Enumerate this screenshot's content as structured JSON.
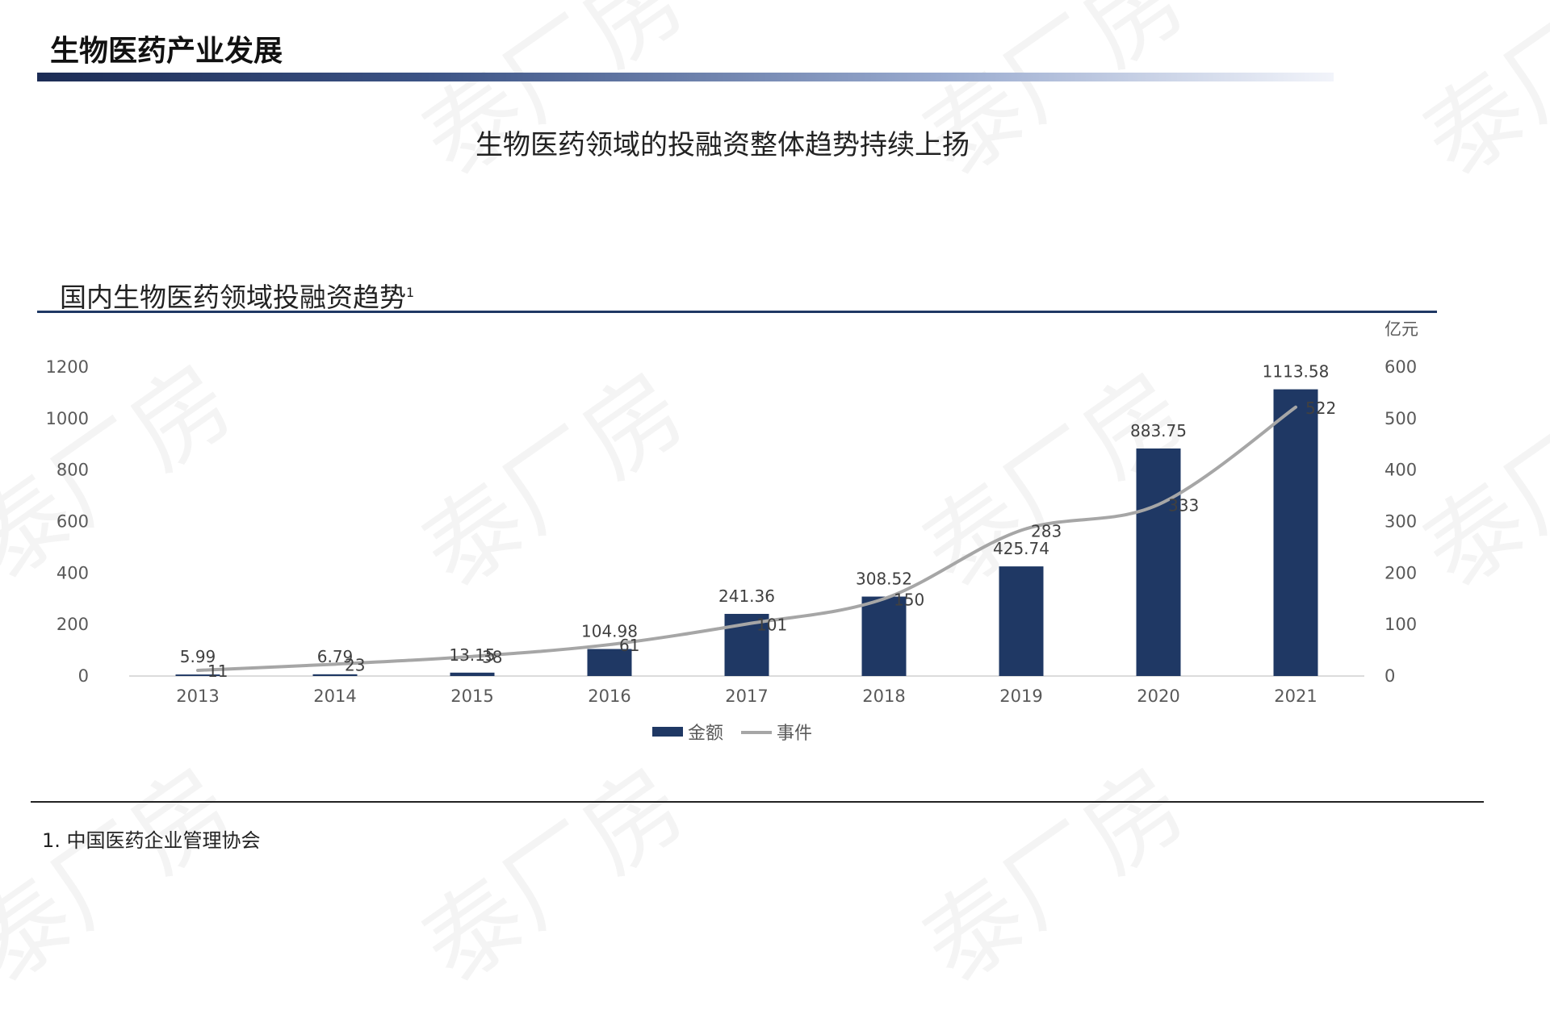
{
  "page": {
    "section_title": "生物医药产业发展",
    "headline": "生物医药领域的投融资整体趋势持续上扬",
    "chart_title": "国内生物医药领域投融资趋势",
    "chart_title_superscript": "1",
    "footnote": "1. 中国医药企业管理协会",
    "watermark": "泰厂房"
  },
  "colors": {
    "bar": "#1f3864",
    "line": "#a6a6a6",
    "header_bar_start": "#1c2c55"
  },
  "chart_data": {
    "type": "bar",
    "categories": [
      "2013",
      "2014",
      "2015",
      "2016",
      "2017",
      "2018",
      "2019",
      "2020",
      "2021"
    ],
    "series": [
      {
        "name": "金额",
        "type": "bar",
        "axis": "left",
        "values": [
          5.99,
          6.79,
          13.15,
          104.98,
          241.36,
          308.52,
          425.74,
          883.75,
          1113.58
        ],
        "labels": [
          "5.99",
          "6.79",
          "13.15",
          "104.98",
          "241.36",
          "308.52",
          "425.74",
          "883.75",
          "1113.58"
        ]
      },
      {
        "name": "事件",
        "type": "line",
        "axis": "right",
        "values": [
          11,
          23,
          38,
          61,
          101,
          150,
          283,
          333,
          522
        ],
        "labels": [
          "11",
          "23",
          "38",
          "61",
          "101",
          "150",
          "283",
          "333",
          "522"
        ]
      }
    ],
    "y_left": {
      "ticks": [
        0,
        200,
        400,
        600,
        800,
        1000,
        1200
      ],
      "range": [
        0,
        1200
      ]
    },
    "y_right": {
      "ticks": [
        0,
        100,
        200,
        300,
        400,
        500,
        600
      ],
      "range": [
        0,
        600
      ],
      "unit": "亿元"
    },
    "legend": {
      "position": "bottom-center",
      "items": [
        "金额",
        "事件"
      ]
    },
    "grid": false
  }
}
